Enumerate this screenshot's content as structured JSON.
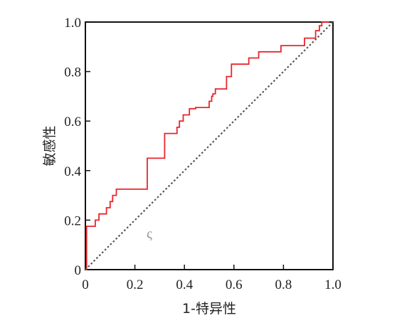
{
  "chart_data": {
    "type": "line",
    "title": "",
    "xlabel": "1-特异性",
    "ylabel": "敏感性",
    "xlim": [
      0,
      1
    ],
    "ylim": [
      0,
      1
    ],
    "x_ticks": [
      "0",
      "0.2",
      "0.4",
      "0.6",
      "0.8",
      "1.0"
    ],
    "y_ticks": [
      "0",
      "0.2",
      "0.4",
      "0.6",
      "0.8",
      "1.0"
    ],
    "grid": false,
    "legend": "none",
    "stray_mark": "ς",
    "series": [
      {
        "style": "solid",
        "color": "#e8262b",
        "x": [
          0,
          0.005,
          0.005,
          0.04,
          0.04,
          0.055,
          0.055,
          0.085,
          0.085,
          0.1,
          0.1,
          0.11,
          0.11,
          0.125,
          0.125,
          0.14,
          0.14,
          0.25,
          0.25,
          0.32,
          0.32,
          0.37,
          0.37,
          0.38,
          0.38,
          0.395,
          0.395,
          0.42,
          0.42,
          0.445,
          0.445,
          0.5,
          0.5,
          0.51,
          0.51,
          0.515,
          0.515,
          0.525,
          0.525,
          0.57,
          0.57,
          0.59,
          0.59,
          0.66,
          0.66,
          0.7,
          0.7,
          0.79,
          0.79,
          0.885,
          0.885,
          0.93,
          0.93,
          0.945,
          0.945,
          0.955,
          0.955,
          0.985
        ],
        "y": [
          0,
          0,
          0.175,
          0.175,
          0.2,
          0.2,
          0.225,
          0.225,
          0.25,
          0.25,
          0.275,
          0.275,
          0.3,
          0.3,
          0.325,
          0.325,
          0.325,
          0.325,
          0.45,
          0.45,
          0.55,
          0.55,
          0.575,
          0.575,
          0.6,
          0.6,
          0.625,
          0.625,
          0.65,
          0.65,
          0.655,
          0.655,
          0.68,
          0.68,
          0.7,
          0.7,
          0.71,
          0.71,
          0.73,
          0.73,
          0.78,
          0.78,
          0.83,
          0.83,
          0.855,
          0.855,
          0.88,
          0.88,
          0.905,
          0.905,
          0.935,
          0.935,
          0.965,
          0.965,
          0.985,
          0.985,
          1.0,
          1.0
        ]
      },
      {
        "style": "dotted",
        "color": "#555555",
        "x": [
          0,
          1
        ],
        "y": [
          0,
          1
        ]
      }
    ]
  }
}
